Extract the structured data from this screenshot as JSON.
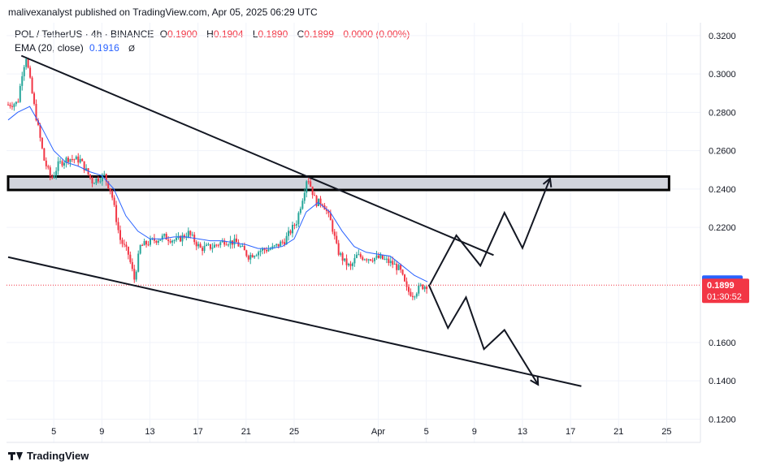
{
  "header": {
    "published": "malivexanalyst published on TradingView.com, Apr 05, 2025 06:29 UTC"
  },
  "legend": {
    "symbol": "POL / TetherUS · 4h · BINANCE",
    "open_label": "O",
    "open": "0.1900",
    "high_label": "H",
    "high": "0.1904",
    "low_label": "L",
    "low": "0.1890",
    "close_label": "C",
    "close": "0.1899",
    "change": "0.0000 (0.00%)",
    "ema_label": "EMA (20, close)",
    "ema_value": "0.1916"
  },
  "footer": {
    "logo_text": "TradingView"
  },
  "colors": {
    "up": "#26a69a",
    "down": "#f23645",
    "ema": "#2962ff",
    "zone": "#d1d4dc"
  },
  "chart_data": {
    "type": "candlestick",
    "y_ticks": [
      "0.3200",
      "0.3000",
      "0.2800",
      "0.2600",
      "0.2400",
      "0.2200",
      "0.1600",
      "0.1400",
      "0.1200"
    ],
    "ylim": [
      0.11,
      0.325
    ],
    "x_ticks": [
      {
        "day": 5,
        "label": "5"
      },
      {
        "day": 9,
        "label": "9"
      },
      {
        "day": 13,
        "label": "13"
      },
      {
        "day": 17,
        "label": "17"
      },
      {
        "day": 21,
        "label": "21"
      },
      {
        "day": 25,
        "label": "25"
      },
      {
        "day": 32,
        "label": "Apr"
      },
      {
        "day": 36,
        "label": "5"
      },
      {
        "day": 40,
        "label": "9"
      },
      {
        "day": 44,
        "label": "13"
      },
      {
        "day": 48,
        "label": "17"
      },
      {
        "day": 52,
        "label": "21"
      },
      {
        "day": 56,
        "label": "25"
      }
    ],
    "xlim": [
      1.2,
      58
    ],
    "price_path": [
      [
        1.2,
        0.284
      ],
      [
        2,
        0.285
      ],
      [
        2.4,
        0.302
      ],
      [
        2.7,
        0.309
      ],
      [
        3.4,
        0.282
      ],
      [
        4.2,
        0.255
      ],
      [
        4.8,
        0.245
      ],
      [
        5.4,
        0.253
      ],
      [
        6.2,
        0.256
      ],
      [
        7.2,
        0.255
      ],
      [
        8.2,
        0.244
      ],
      [
        9.2,
        0.247
      ],
      [
        9.8,
        0.238
      ],
      [
        10.5,
        0.214
      ],
      [
        11.2,
        0.206
      ],
      [
        11.7,
        0.193
      ],
      [
        12.2,
        0.21
      ],
      [
        13.2,
        0.213
      ],
      [
        14.2,
        0.215
      ],
      [
        15.2,
        0.213
      ],
      [
        16.2,
        0.217
      ],
      [
        17.2,
        0.209
      ],
      [
        18.2,
        0.21
      ],
      [
        19.2,
        0.213
      ],
      [
        20.2,
        0.212
      ],
      [
        21.2,
        0.205
      ],
      [
        22.2,
        0.208
      ],
      [
        23.2,
        0.209
      ],
      [
        24.2,
        0.213
      ],
      [
        25.2,
        0.223
      ],
      [
        25.8,
        0.238
      ],
      [
        26.1,
        0.247
      ],
      [
        26.8,
        0.233
      ],
      [
        27.4,
        0.233
      ],
      [
        28.1,
        0.222
      ],
      [
        28.6,
        0.208
      ],
      [
        29.2,
        0.202
      ],
      [
        29.7,
        0.199
      ],
      [
        30.2,
        0.205
      ],
      [
        31.2,
        0.204
      ],
      [
        32.2,
        0.204
      ],
      [
        33.2,
        0.201
      ],
      [
        33.8,
        0.198
      ],
      [
        34.4,
        0.187
      ],
      [
        34.9,
        0.185
      ],
      [
        35.5,
        0.189
      ],
      [
        36.1,
        0.1899
      ]
    ],
    "ema_path": [
      [
        1.2,
        0.276
      ],
      [
        2,
        0.28
      ],
      [
        3,
        0.283
      ],
      [
        4,
        0.272
      ],
      [
        5,
        0.26
      ],
      [
        6,
        0.254
      ],
      [
        7,
        0.252
      ],
      [
        8,
        0.249
      ],
      [
        9,
        0.247
      ],
      [
        10,
        0.24
      ],
      [
        11,
        0.226
      ],
      [
        12,
        0.218
      ],
      [
        13,
        0.214
      ],
      [
        14,
        0.214
      ],
      [
        15,
        0.215
      ],
      [
        16,
        0.215
      ],
      [
        17,
        0.214
      ],
      [
        18,
        0.213
      ],
      [
        19,
        0.213
      ],
      [
        20,
        0.212
      ],
      [
        21,
        0.211
      ],
      [
        22,
        0.209
      ],
      [
        23,
        0.209
      ],
      [
        24,
        0.21
      ],
      [
        25,
        0.214
      ],
      [
        26,
        0.228
      ],
      [
        27,
        0.233
      ],
      [
        28,
        0.228
      ],
      [
        29,
        0.218
      ],
      [
        30,
        0.21
      ],
      [
        31,
        0.207
      ],
      [
        32,
        0.206
      ],
      [
        33,
        0.205
      ],
      [
        34,
        0.2
      ],
      [
        35,
        0.195
      ],
      [
        36.1,
        0.1916
      ]
    ],
    "resistance_zone": {
      "x": [
        1.2,
        56.2
      ],
      "y": [
        0.2395,
        0.2465
      ]
    },
    "trendlines": [
      {
        "from": [
          2.3,
          0.3095
        ],
        "to": [
          41.6,
          0.2055
        ]
      },
      {
        "from": [
          1.2,
          0.2045
        ],
        "to": [
          48.9,
          0.1372
        ]
      }
    ],
    "projection_up": [
      [
        36.3,
        0.1901
      ],
      [
        38.5,
        0.2158
      ],
      [
        40.5,
        0.2
      ],
      [
        42.5,
        0.2276
      ],
      [
        44,
        0.2092
      ],
      [
        46.3,
        0.2455
      ]
    ],
    "projection_down": [
      [
        36.2,
        0.1901
      ],
      [
        37.8,
        0.1675
      ],
      [
        39.3,
        0.1835
      ],
      [
        40.8,
        0.1565
      ],
      [
        42.5,
        0.1665
      ],
      [
        45.3,
        0.138
      ]
    ],
    "price_label": {
      "value": "0.1899",
      "countdown": "01:30:52"
    },
    "ema_label": {
      "value": "0.1916"
    }
  }
}
